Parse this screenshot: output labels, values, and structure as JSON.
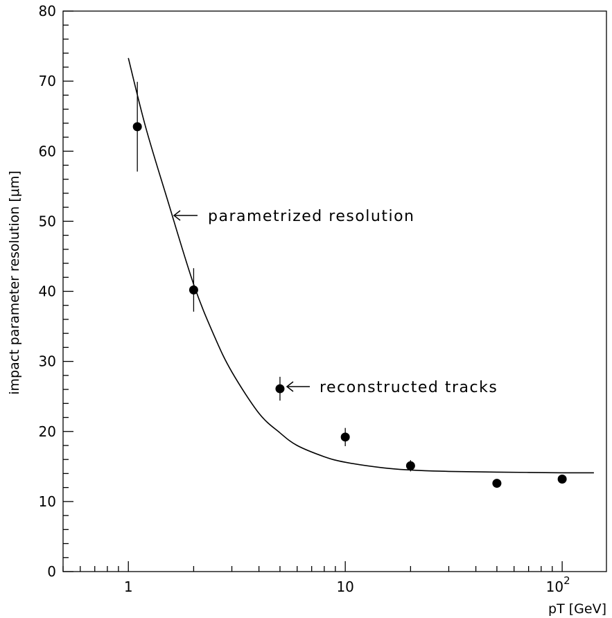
{
  "chart_data": {
    "type": "scatter",
    "xlabel": "pT [GeV]",
    "ylabel": "impact parameter resolution [μm]",
    "x_scale": "log",
    "xlim": [
      0.5,
      160
    ],
    "ylim": [
      0,
      80
    ],
    "x_tick_labels": [
      {
        "value": 1,
        "label": "1"
      },
      {
        "value": 10,
        "label": "10"
      },
      {
        "value": 100,
        "label": "10",
        "sup": "2"
      }
    ],
    "y_tick_labels": [
      "0",
      "10",
      "20",
      "30",
      "40",
      "50",
      "60",
      "70",
      "80"
    ],
    "grid": false,
    "series": [
      {
        "type": "scatter-errorbar",
        "x": [
          1.1,
          2,
          5,
          10,
          20,
          50,
          100
        ],
        "y": [
          63.5,
          40.2,
          26.1,
          19.2,
          15.1,
          12.6,
          13.2
        ],
        "y_err": [
          6.4,
          3.1,
          1.7,
          1.3,
          0.8,
          0.5,
          0.6
        ]
      },
      {
        "type": "line",
        "x": [
          1,
          1.2,
          1.5,
          2,
          2.5,
          3,
          4,
          5,
          6,
          8,
          10,
          15,
          20,
          30,
          50,
          100,
          140
        ],
        "y": [
          73.3,
          63.5,
          53.5,
          41.0,
          33.5,
          28.5,
          22.6,
          19.8,
          18.0,
          16.4,
          15.6,
          14.8,
          14.5,
          14.3,
          14.2,
          14.1,
          14.1
        ]
      }
    ],
    "annotations": [
      {
        "text": "parametrized resolution"
      },
      {
        "text": "reconstructed tracks"
      }
    ]
  }
}
